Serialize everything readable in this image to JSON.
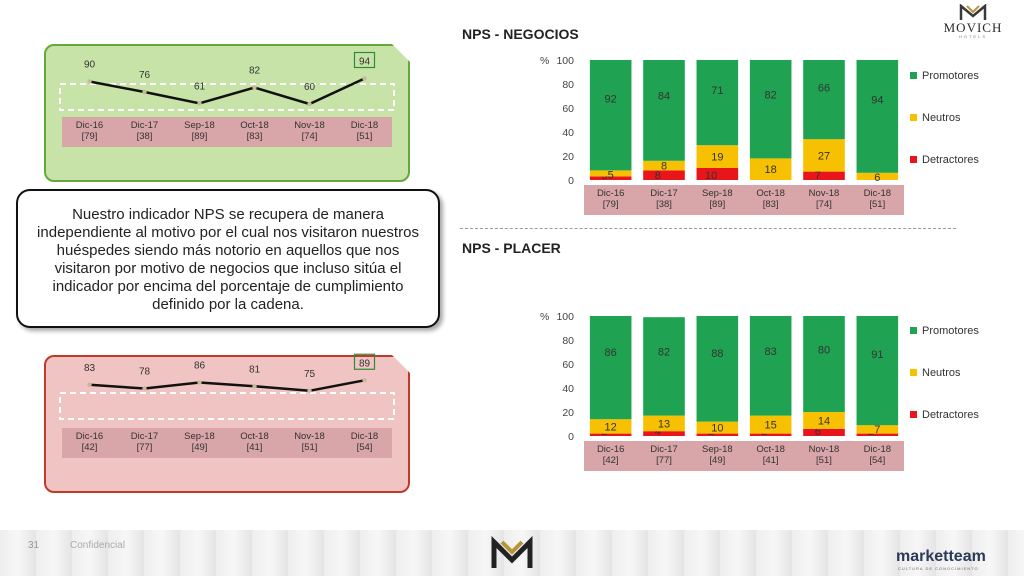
{
  "brand": {
    "name": "MOVICH",
    "sub": "HOTELS"
  },
  "titles": {
    "negocios": "NPS - NEGOCIOS",
    "placer": "NPS - PLACER"
  },
  "callout": "Nuestro indicador NPS se recupera de manera independiente al motivo por el cual nos visitaron nuestros huéspedes siendo más notorio en aquellos que nos visitaron por motivo de negocios que incluso sitúa el indicador por encima del porcentaje de cumplimiento definido por la cadena.",
  "footer": {
    "page": "31",
    "conf": "Confidencial",
    "company": "marketteam",
    "company_sub": "CULTURA DE CONOCIMIENTO"
  },
  "colors": {
    "green": "#1fa352",
    "yellow": "#f7c000",
    "red": "#e8151b",
    "ticks": "#d8a5a8"
  },
  "chart_data": [
    {
      "id": "trend-negocios",
      "type": "line",
      "categories": [
        "Dic-16",
        "Dic-17",
        "Sep-18",
        "Oct-18",
        "Nov-18",
        "Dic-18"
      ],
      "bases": [
        "[79]",
        "[38]",
        "[89]",
        "[83]",
        "[74]",
        "[51]"
      ],
      "values": [
        90,
        76,
        61,
        82,
        60,
        94
      ],
      "highlight_last": true
    },
    {
      "id": "trend-placer",
      "type": "line",
      "categories": [
        "Dic-16",
        "Dic-17",
        "Sep-18",
        "Oct-18",
        "Nov-18",
        "Dic-18"
      ],
      "bases": [
        "[42]",
        "[77]",
        "[49]",
        "[41]",
        "[51]",
        "[54]"
      ],
      "values": [
        83,
        78,
        86,
        81,
        75,
        89
      ],
      "highlight_last": true
    },
    {
      "id": "bars-negocios",
      "type": "bar",
      "stacked": true,
      "title": "NPS - NEGOCIOS",
      "ylabel": "%",
      "ylim": [
        0,
        100
      ],
      "yticks": [
        0,
        20,
        40,
        60,
        80,
        100
      ],
      "categories": [
        "Dic-16",
        "Dic-17",
        "Sep-18",
        "Oct-18",
        "Nov-18",
        "Dic-18"
      ],
      "bases": [
        "[79]",
        "[38]",
        "[89]",
        "[83]",
        "[74]",
        "[51]"
      ],
      "series": [
        {
          "name": "Detractores",
          "color": "#e8151b",
          "values": [
            3,
            8,
            10,
            0,
            7,
            0
          ],
          "labels": [
            "3",
            "8",
            "10",
            "",
            "7",
            ""
          ]
        },
        {
          "name": "Neutros",
          "color": "#f7c000",
          "values": [
            5,
            8,
            19,
            18,
            27,
            6
          ],
          "labels": [
            "5",
            "8",
            "19",
            "18",
            "27",
            "6"
          ]
        },
        {
          "name": "Promotores",
          "color": "#1fa352",
          "values": [
            92,
            84,
            71,
            82,
            66,
            94
          ],
          "labels": [
            "92",
            "84",
            "71",
            "82",
            "66",
            "94"
          ]
        }
      ],
      "legend": [
        "Promotores",
        "Neutros",
        "Detractores"
      ]
    },
    {
      "id": "bars-placer",
      "type": "bar",
      "stacked": true,
      "title": "NPS - PLACER",
      "ylabel": "%",
      "ylim": [
        0,
        100
      ],
      "yticks": [
        0,
        20,
        40,
        60,
        80,
        100
      ],
      "categories": [
        "Dic-16",
        "Dic-17",
        "Sep-18",
        "Oct-18",
        "Nov-18",
        "Dic-18"
      ],
      "bases": [
        "[42]",
        "[77]",
        "[49]",
        "[41]",
        "[51]",
        "[54]"
      ],
      "series": [
        {
          "name": "Detractores",
          "color": "#e8151b",
          "values": [
            2,
            4,
            2,
            2,
            6,
            2
          ],
          "labels": [
            "2",
            "4",
            "2",
            "2",
            "6",
            "2"
          ]
        },
        {
          "name": "Neutros",
          "color": "#f7c000",
          "values": [
            12,
            13,
            10,
            15,
            14,
            7
          ],
          "labels": [
            "12",
            "13",
            "10",
            "15",
            "14",
            "7"
          ]
        },
        {
          "name": "Promotores",
          "color": "#1fa352",
          "values": [
            86,
            82,
            88,
            83,
            80,
            91
          ],
          "labels": [
            "86",
            "82",
            "88",
            "83",
            "80",
            "91"
          ]
        }
      ],
      "legend": [
        "Promotores",
        "Neutros",
        "Detractores"
      ]
    }
  ]
}
